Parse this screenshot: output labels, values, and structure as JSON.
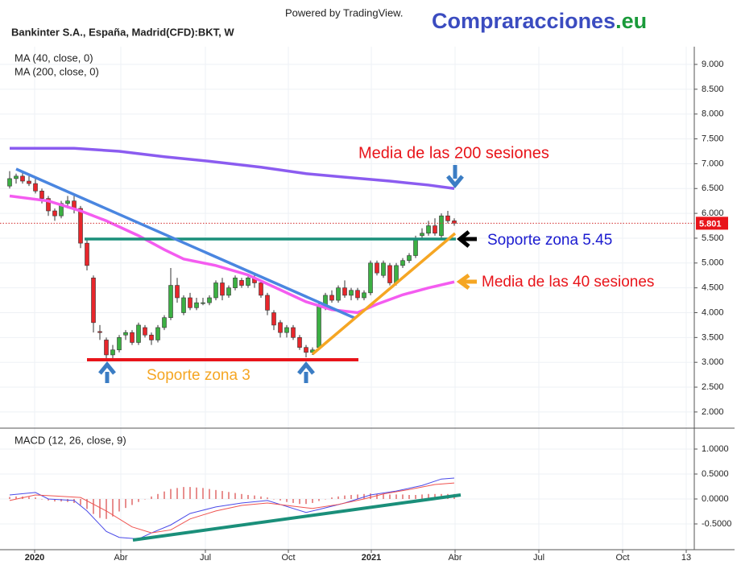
{
  "header": {
    "powered_by": "Powered by TradingView.",
    "brand": "Compraracciones",
    "brand_suffix": ".eu"
  },
  "chart_data": [
    {
      "type": "candlestick",
      "title": "Bankinter S.A., España, Madrid(CFD):BKT, W",
      "x": [
        0,
        1,
        2,
        3,
        4,
        5,
        6,
        7,
        8,
        9,
        10,
        11,
        12,
        13,
        14,
        15,
        16,
        17,
        18,
        19,
        20,
        21,
        22,
        23,
        24,
        25,
        26,
        27,
        28,
        29,
        30,
        31,
        32,
        33,
        34,
        35,
        36,
        37,
        38,
        39,
        40,
        41,
        42,
        43,
        44,
        45,
        46,
        47,
        48,
        49,
        50,
        51,
        52,
        53,
        54,
        55,
        56,
        57,
        58,
        59,
        60,
        61,
        62,
        63,
        64,
        65,
        66,
        67,
        68,
        69
      ],
      "open": [
        6.55,
        6.7,
        6.75,
        6.65,
        6.6,
        6.45,
        6.3,
        6.05,
        5.95,
        6.2,
        6.25,
        6.1,
        5.4,
        4.7,
        3.62,
        3.45,
        3.15,
        3.25,
        3.55,
        3.6,
        3.4,
        3.7,
        3.55,
        3.45,
        3.7,
        3.9,
        4.55,
        4.0,
        4.3,
        4.1,
        4.2,
        4.2,
        4.3,
        4.6,
        4.35,
        4.5,
        4.65,
        4.55,
        4.7,
        4.6,
        4.35,
        4.0,
        3.8,
        3.6,
        3.7,
        3.5,
        3.3,
        3.2,
        3.3,
        4.15,
        4.35,
        4.25,
        4.5,
        4.35,
        4.45,
        4.3,
        4.4,
        5.0,
        4.75,
        4.95,
        4.6,
        4.95,
        5.05,
        5.15,
        5.55,
        5.6,
        5.75,
        5.55,
        5.95,
        5.85
      ],
      "high": [
        6.85,
        6.8,
        6.85,
        6.75,
        6.7,
        6.5,
        6.35,
        6.1,
        6.25,
        6.35,
        6.35,
        6.15,
        5.5,
        4.75,
        3.75,
        3.5,
        3.35,
        3.55,
        3.65,
        3.65,
        3.8,
        3.75,
        3.6,
        3.75,
        3.95,
        4.9,
        4.7,
        4.35,
        4.4,
        4.3,
        4.3,
        4.35,
        4.65,
        4.7,
        4.55,
        4.75,
        4.7,
        4.75,
        4.8,
        4.65,
        4.4,
        4.05,
        3.85,
        3.75,
        3.75,
        3.55,
        3.35,
        3.3,
        4.2,
        4.4,
        4.45,
        4.55,
        4.65,
        4.5,
        4.5,
        4.45,
        5.05,
        5.05,
        5.05,
        5.0,
        5.0,
        5.1,
        5.2,
        5.55,
        5.7,
        5.85,
        5.9,
        6.0,
        6.05,
        5.9
      ],
      "low": [
        6.5,
        6.6,
        6.6,
        6.55,
        6.4,
        6.2,
        5.95,
        5.85,
        5.9,
        6.1,
        6.0,
        5.3,
        4.85,
        3.6,
        3.45,
        3.05,
        3.05,
        3.2,
        3.45,
        3.35,
        3.35,
        3.5,
        3.35,
        3.4,
        3.65,
        3.85,
        4.2,
        3.95,
        4.05,
        4.05,
        4.15,
        4.15,
        4.25,
        4.25,
        4.3,
        4.45,
        4.5,
        4.5,
        4.5,
        4.3,
        3.95,
        3.65,
        3.5,
        3.5,
        3.45,
        3.25,
        3.1,
        3.15,
        3.25,
        4.05,
        4.2,
        4.2,
        4.3,
        4.25,
        4.25,
        4.25,
        4.35,
        4.75,
        4.7,
        4.55,
        4.55,
        4.9,
        5.0,
        5.1,
        5.5,
        5.55,
        5.55,
        5.5,
        5.8,
        5.75
      ],
      "close": [
        6.7,
        6.75,
        6.65,
        6.6,
        6.45,
        6.3,
        6.05,
        5.95,
        6.2,
        6.25,
        6.1,
        5.4,
        4.95,
        3.8,
        3.6,
        3.15,
        3.25,
        3.5,
        3.6,
        3.4,
        3.75,
        3.55,
        3.45,
        3.7,
        3.9,
        4.55,
        4.3,
        4.3,
        4.1,
        4.2,
        4.2,
        4.3,
        4.6,
        4.35,
        4.5,
        4.7,
        4.55,
        4.7,
        4.6,
        4.35,
        4.05,
        3.75,
        3.6,
        3.7,
        3.5,
        3.3,
        3.2,
        3.25,
        4.15,
        4.35,
        4.25,
        4.5,
        4.35,
        4.45,
        4.3,
        4.4,
        5.0,
        4.8,
        5.0,
        4.6,
        4.95,
        5.05,
        5.15,
        5.5,
        5.6,
        5.75,
        5.6,
        5.95,
        5.85,
        5.801
      ],
      "up_color": "#3cb043",
      "down_color": "#e8262b",
      "overlays": [
        {
          "name": "MA (40, close, 0)",
          "color": "#f45cf0",
          "x": [
            0,
            6,
            11,
            15,
            20,
            24,
            27,
            32,
            37,
            42,
            46,
            50,
            54,
            57,
            61,
            65,
            69
          ],
          "values": [
            6.35,
            6.25,
            6.05,
            5.85,
            5.55,
            5.27,
            5.08,
            4.95,
            4.76,
            4.46,
            4.22,
            4.06,
            4.0,
            4.17,
            4.36,
            4.5,
            4.62
          ]
        },
        {
          "name": "MA (200, close, 0)",
          "color": "#8b5cf0",
          "x": [
            0,
            10,
            17,
            24,
            31,
            39,
            46,
            52,
            59,
            65,
            69
          ],
          "values": [
            7.31,
            7.31,
            7.25,
            7.14,
            7.05,
            6.93,
            6.8,
            6.73,
            6.65,
            6.57,
            6.5
          ]
        }
      ],
      "last_price": 5.801,
      "annotations": [
        "Media de las 200 sesiones",
        "Soporte zona 5.45",
        "Media de las 40 sesiones",
        "Soporte zona 3"
      ],
      "xlim": [
        -1.5,
        106.25
      ],
      "ylim": [
        1.674,
        9.357
      ],
      "yticks": [
        {
          "value": 9,
          "label": "9.000"
        },
        {
          "value": 8.5,
          "label": "8.500"
        },
        {
          "value": 8,
          "label": "8.000"
        },
        {
          "value": 7.5,
          "label": "7.500"
        },
        {
          "value": 7,
          "label": "7.000"
        },
        {
          "value": 6.5,
          "label": "6.500"
        },
        {
          "value": 6,
          "label": "6.000"
        },
        {
          "value": 5.5,
          "label": "5.500"
        },
        {
          "value": 5,
          "label": "5.000"
        },
        {
          "value": 4.5,
          "label": "4.500"
        },
        {
          "value": 4,
          "label": "4.000"
        },
        {
          "value": 3.5,
          "label": "3.500"
        },
        {
          "value": 3,
          "label": "3.000"
        },
        {
          "value": 2.5,
          "label": "2.500"
        },
        {
          "value": 2,
          "label": "2.000"
        }
      ],
      "grid": true
    },
    {
      "type": "macd",
      "title": "MACD (12, 26, close, 9)",
      "x": [
        0,
        1,
        2,
        3,
        4,
        5,
        6,
        7,
        8,
        9,
        10,
        11,
        12,
        13,
        14,
        15,
        16,
        17,
        18,
        19,
        20,
        21,
        22,
        23,
        24,
        25,
        26,
        27,
        28,
        29,
        30,
        31,
        32,
        33,
        34,
        35,
        36,
        37,
        38,
        39,
        40,
        41,
        42,
        43,
        44,
        45,
        46,
        47,
        48,
        49,
        50,
        51,
        52,
        53,
        54,
        55,
        56,
        57,
        58,
        59,
        60,
        61,
        62,
        63,
        64,
        65,
        66,
        67,
        68,
        69
      ],
      "histogram": [
        0.04,
        0.05,
        0.05,
        0.04,
        0.03,
        0.0,
        -0.03,
        -0.05,
        -0.05,
        -0.06,
        -0.08,
        -0.12,
        -0.2,
        -0.3,
        -0.38,
        -0.4,
        -0.35,
        -0.25,
        -0.18,
        -0.12,
        -0.06,
        0.0,
        0.05,
        0.1,
        0.15,
        0.2,
        0.22,
        0.24,
        0.24,
        0.23,
        0.22,
        0.2,
        0.18,
        0.16,
        0.14,
        0.12,
        0.1,
        0.08,
        0.07,
        0.05,
        0.03,
        0.0,
        -0.03,
        -0.06,
        -0.08,
        -0.1,
        -0.1,
        -0.08,
        -0.04,
        0.0,
        0.03,
        0.05,
        0.07,
        0.08,
        0.09,
        0.1,
        0.11,
        0.1,
        0.1,
        0.09,
        0.09,
        0.09,
        0.08,
        0.08,
        0.09,
        0.1,
        0.1,
        0.1,
        0.1,
        0.1
      ],
      "histogram_color": "#e06a6a",
      "series": [
        {
          "color": "#4a4ae8",
          "x": [
            0,
            4,
            6,
            10,
            12,
            15,
            17,
            20,
            22,
            25,
            28,
            32,
            36,
            40,
            42,
            46,
            48,
            52,
            56,
            60,
            64,
            67,
            69
          ],
          "values": [
            0.08,
            0.13,
            0.0,
            -0.03,
            -0.24,
            -0.65,
            -0.77,
            -0.8,
            -0.68,
            -0.52,
            -0.29,
            -0.16,
            -0.08,
            -0.03,
            -0.11,
            -0.27,
            -0.21,
            -0.08,
            0.08,
            0.16,
            0.27,
            0.4,
            0.42
          ]
        },
        {
          "color": "#ef5350",
          "x": [
            0,
            4,
            7,
            11,
            15,
            19,
            22,
            25,
            28,
            32,
            36,
            40,
            43,
            47,
            51,
            55,
            58,
            62,
            66,
            69
          ],
          "values": [
            -0.03,
            0.08,
            0.06,
            0.03,
            -0.24,
            -0.56,
            -0.68,
            -0.62,
            -0.4,
            -0.24,
            -0.13,
            -0.08,
            -0.13,
            -0.19,
            -0.11,
            0.0,
            0.1,
            0.19,
            0.29,
            0.32
          ]
        }
      ],
      "xlim": [
        -1.5,
        106.25
      ],
      "ylim": [
        -1.016,
        1.419
      ],
      "yticks": [
        {
          "value": 1,
          "label": "1.0000"
        },
        {
          "value": 0.5,
          "label": "0.5000"
        },
        {
          "value": 0,
          "label": "0.0000"
        },
        {
          "value": -0.5,
          "label": "-0.5000"
        }
      ],
      "xticks": [
        {
          "value": 3.875,
          "label": "2020"
        },
        {
          "value": 17.25,
          "label": "Abr"
        },
        {
          "value": 30.375,
          "label": "Jul"
        },
        {
          "value": 43.25,
          "label": "Oct"
        },
        {
          "value": 56.125,
          "label": "2021"
        },
        {
          "value": 69.125,
          "label": "Abr"
        },
        {
          "value": 82.125,
          "label": "Jul"
        },
        {
          "value": 95.125,
          "label": "Oct"
        },
        {
          "value": 105,
          "label": "13"
        }
      ],
      "grid": true
    }
  ]
}
